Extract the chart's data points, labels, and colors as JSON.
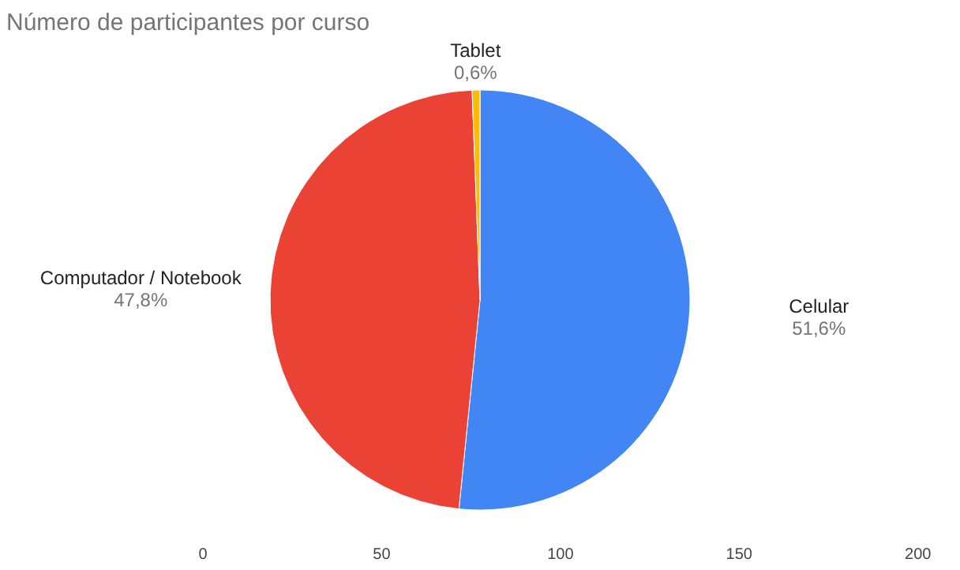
{
  "chart_data": {
    "type": "pie",
    "title": "Número de participantes por curso",
    "categories": [
      "Celular",
      "Computador / Notebook",
      "Tablet"
    ],
    "values": [
      51.6,
      47.8,
      0.6
    ],
    "value_labels": [
      "51,6%",
      "47,8%",
      "0,6%"
    ],
    "colors": [
      "#4285f4",
      "#ea4335",
      "#fbbc04"
    ],
    "annotations": [
      "0",
      "50",
      "100",
      "150",
      "200"
    ]
  }
}
